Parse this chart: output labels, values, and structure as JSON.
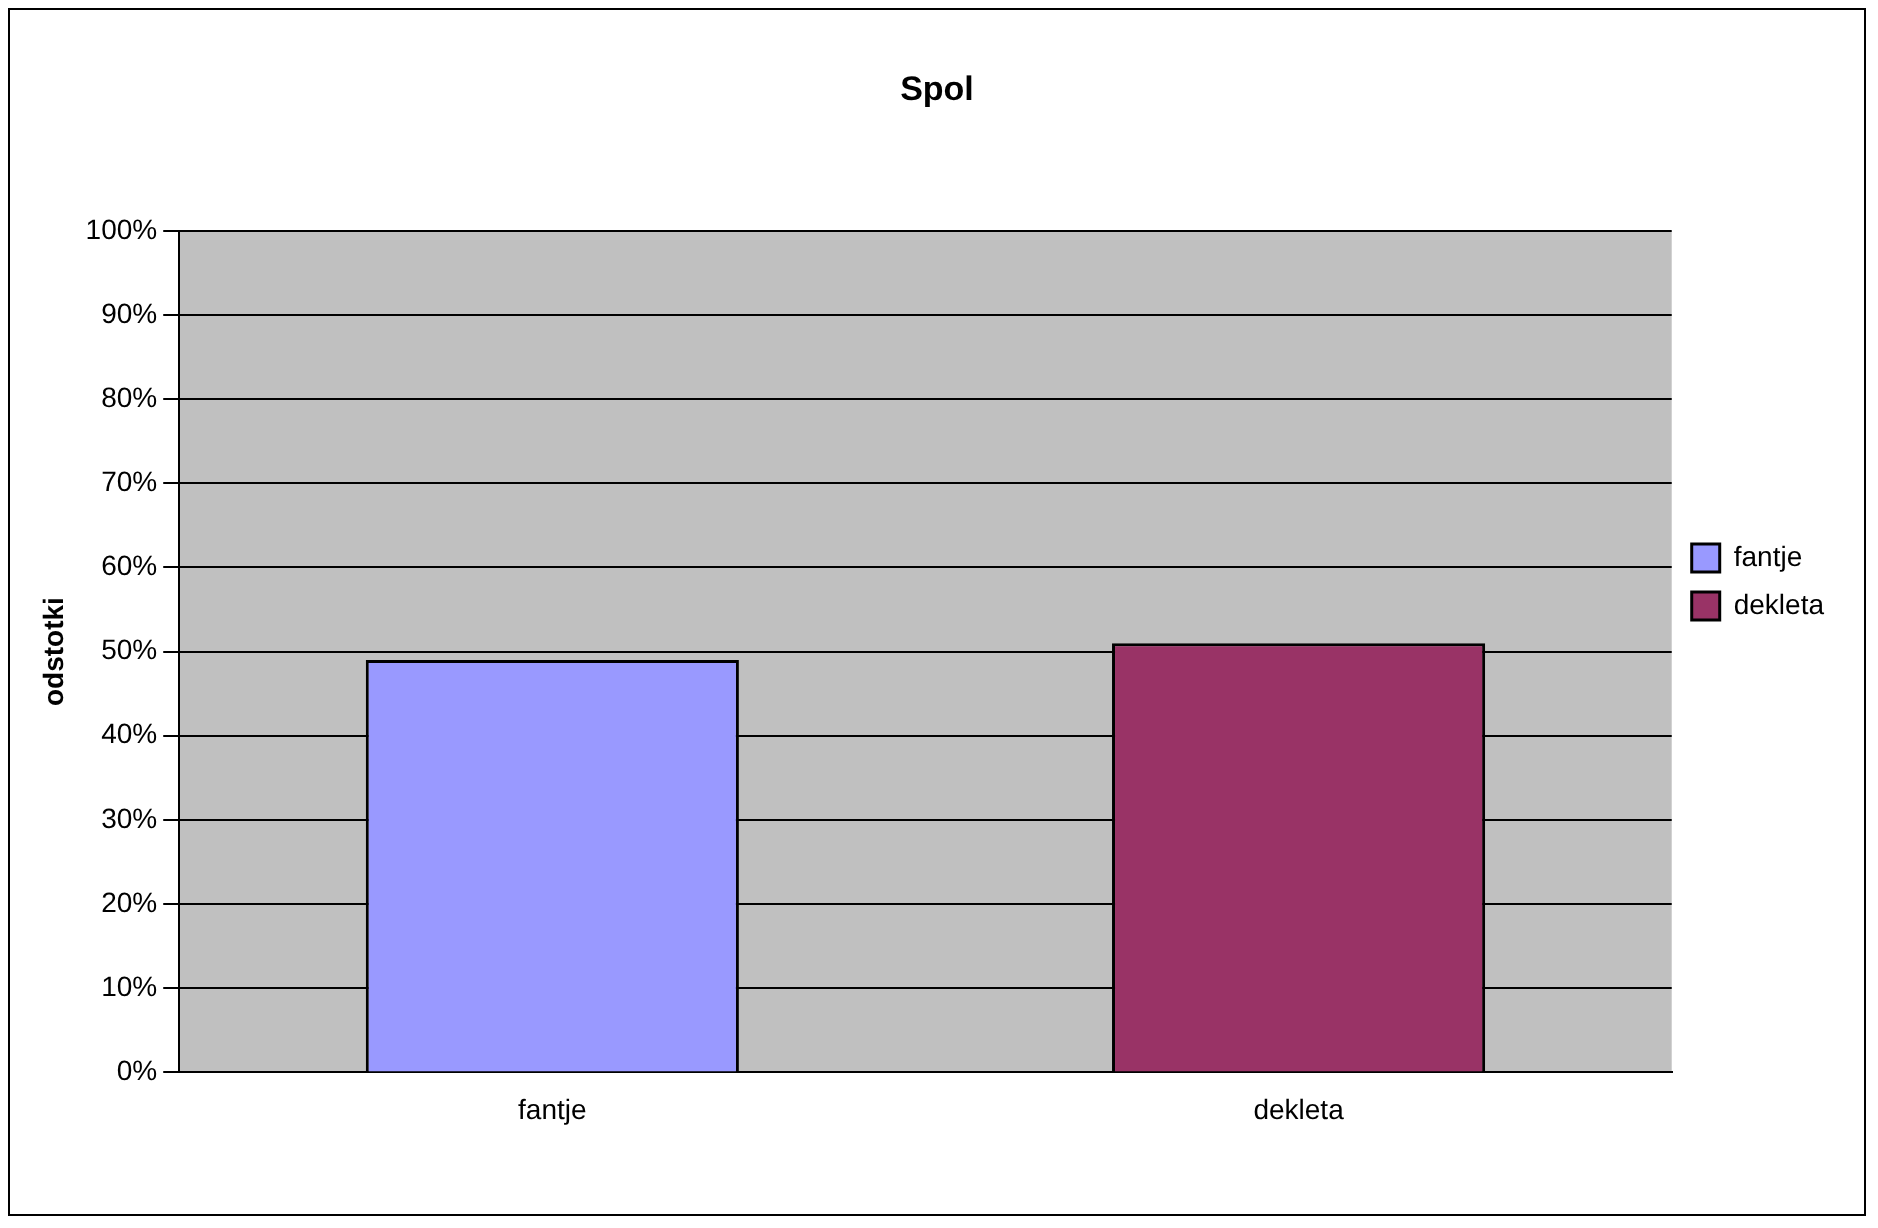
{
  "chart_data": {
    "type": "bar",
    "title": "Spol",
    "ylabel": "odstotki",
    "categories": [
      "fantje",
      "dekleta"
    ],
    "series": [
      {
        "name": "fantje",
        "color": "#9999ff",
        "values": [
          49,
          null
        ]
      },
      {
        "name": "dekleta",
        "color": "#993366",
        "values": [
          null,
          51
        ]
      }
    ],
    "ylim": [
      0,
      100
    ],
    "yticks": [
      {
        "value": 0,
        "label": "0%"
      },
      {
        "value": 10,
        "label": "10%"
      },
      {
        "value": 20,
        "label": "20%"
      },
      {
        "value": 30,
        "label": "30%"
      },
      {
        "value": 40,
        "label": "40%"
      },
      {
        "value": 50,
        "label": "50%"
      },
      {
        "value": 60,
        "label": "60%"
      },
      {
        "value": 70,
        "label": "70%"
      },
      {
        "value": 80,
        "label": "80%"
      },
      {
        "value": 90,
        "label": "90%"
      },
      {
        "value": 100,
        "label": "100%"
      }
    ],
    "grid": "y",
    "legend": "right"
  }
}
